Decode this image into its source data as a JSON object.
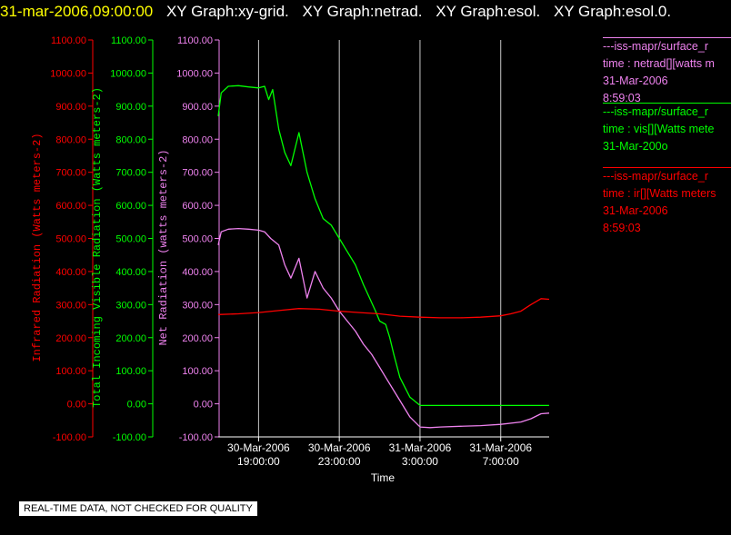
{
  "header": {
    "timestamp": "31-mar-2006,09:00:00",
    "graphs": [
      "XY Graph:xy-grid.",
      "XY Graph:netrad.",
      "XY Graph:esol.",
      "XY Graph:esol.0."
    ]
  },
  "colors": {
    "red": "#ff0000",
    "green": "#00ff00",
    "violet": "#ee82ee",
    "grid": "#c8c8c8",
    "axis": "#ffffff"
  },
  "legend": [
    {
      "line1": "---iss-mapr/surface_r",
      "line2": "time : netrad[][watts m",
      "line3": "31-Mar-2006",
      "line4": "8:59:03",
      "color": "#ee82ee"
    },
    {
      "line1": "---iss-mapr/surface_r",
      "line2": "time : vis[][Watts mete",
      "line3": "31-Mar-200o",
      "line4": "",
      "color": "#00ff00"
    },
    {
      "line1": "---iss-mapr/surface_r",
      "line2": "time : ir[][Watts meters",
      "line3": "31-Mar-2006",
      "line4": "8:59:03",
      "color": "#ff0000"
    }
  ],
  "notice": "REAL-TIME DATA, NOT CHECKED FOR QUALITY",
  "chart_data": {
    "type": "line",
    "xlabel": "Time",
    "x_range": [
      "30-Mar-2006 17:00",
      "31-Mar-2006 09:00"
    ],
    "x_ticks": [
      {
        "date": "30-Mar-2006",
        "time": "19:00:00",
        "hour": 19
      },
      {
        "date": "30-Mar-2006",
        "time": "23:00:00",
        "hour": 23
      },
      {
        "date": "31-Mar-2006",
        "time": "3:00:00",
        "hour": 27
      },
      {
        "date": "31-Mar-2006",
        "time": "7:00:00",
        "hour": 31
      }
    ],
    "y_axes": [
      {
        "label": "Infrared Radiation (Watts meters-2)",
        "color": "#ff0000",
        "ticks": [
          "1100.00",
          "1000.00",
          "900.00",
          "800.00",
          "700.00",
          "600.00",
          "500.00",
          "400.00",
          "300.00",
          "200.00",
          "100.00",
          "0.00",
          "-100.00"
        ]
      },
      {
        "label": "Total Incoming Visible Radiation (Watts meters-2)",
        "color": "#00ff00",
        "ticks": [
          "1100.00",
          "1000.00",
          "900.00",
          "800.00",
          "700.00",
          "600.00",
          "500.00",
          "400.00",
          "300.00",
          "200.00",
          "100.00",
          "0.00",
          "-100.00"
        ]
      },
      {
        "label": "Net Radiation (watts meters-2)",
        "color": "#ee82ee",
        "ticks": [
          "1100.00",
          "1000.00",
          "900.00",
          "800.00",
          "700.00",
          "600.00",
          "500.00",
          "400.00",
          "300.00",
          "200.00",
          "100.00",
          "0.00",
          "-100.00"
        ]
      }
    ],
    "ylim": [
      -100,
      1100
    ],
    "grid": "vertical lines at x ticks",
    "series": [
      {
        "color": "#00ff00",
        "x": [
          17.0,
          17.15,
          17.5,
          18.0,
          18.5,
          19.0,
          19.3,
          19.5,
          19.7,
          20.0,
          20.3,
          20.6,
          21.0,
          21.4,
          21.8,
          22.2,
          22.6,
          23.0,
          23.4,
          23.8,
          24.2,
          24.5,
          24.8,
          25.0,
          25.3,
          25.5,
          25.7,
          26.0,
          26.5,
          27.0,
          28.0,
          29.0,
          30.0,
          31.0,
          32.0,
          32.5,
          33.0,
          33.4
        ],
        "y": [
          870,
          940,
          960,
          962,
          958,
          955,
          960,
          920,
          950,
          830,
          760,
          720,
          820,
          700,
          620,
          560,
          540,
          500,
          460,
          420,
          360,
          320,
          280,
          250,
          240,
          200,
          150,
          80,
          20,
          -5,
          -5,
          -5,
          -5,
          -5,
          -5,
          -5,
          -5,
          -5
        ]
      },
      {
        "color": "#ee82ee",
        "x": [
          17.0,
          17.15,
          17.5,
          18.0,
          18.5,
          19.0,
          19.3,
          19.6,
          20.0,
          20.3,
          20.6,
          21.0,
          21.4,
          21.8,
          22.2,
          22.6,
          23.0,
          23.4,
          23.8,
          24.2,
          24.6,
          25.0,
          25.3,
          25.6,
          26.0,
          26.5,
          27.0,
          27.5,
          28.0,
          29.0,
          30.0,
          31.0,
          32.0,
          32.5,
          33.0,
          33.4
        ],
        "y": [
          480,
          520,
          528,
          530,
          528,
          525,
          520,
          500,
          480,
          420,
          380,
          440,
          320,
          400,
          350,
          320,
          280,
          250,
          220,
          180,
          150,
          110,
          80,
          50,
          10,
          -40,
          -70,
          -72,
          -70,
          -68,
          -66,
          -62,
          -55,
          -45,
          -30,
          -28
        ]
      },
      {
        "color": "#ff0000",
        "x": [
          17.0,
          18.0,
          19.0,
          20.0,
          21.0,
          22.0,
          23.0,
          24.0,
          25.0,
          26.0,
          27.0,
          28.0,
          29.0,
          30.0,
          31.0,
          31.5,
          32.0,
          32.5,
          33.0,
          33.4
        ],
        "y": [
          270,
          272,
          276,
          282,
          288,
          286,
          280,
          276,
          272,
          265,
          262,
          260,
          260,
          262,
          266,
          272,
          280,
          300,
          318,
          316
        ]
      }
    ]
  }
}
